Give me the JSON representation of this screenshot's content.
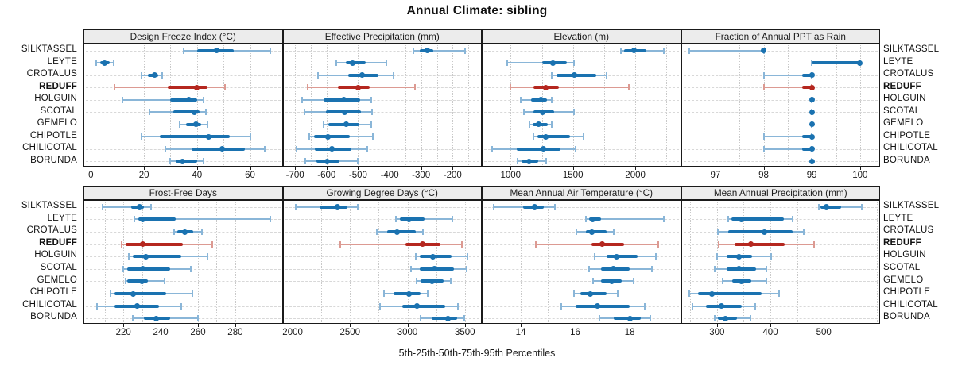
{
  "title": "Annual Climate: sibling",
  "caption": "5th-25th-50th-75th-95th Percentiles",
  "percentile_labels": [
    "5th",
    "25th",
    "50th",
    "75th",
    "95th"
  ],
  "sites": [
    {
      "name": "SILKTASSEL",
      "highlight": false
    },
    {
      "name": "LEYTE",
      "highlight": false
    },
    {
      "name": "CROTALUS",
      "highlight": false
    },
    {
      "name": "REDUFF",
      "highlight": true
    },
    {
      "name": "HOLGUIN",
      "highlight": false
    },
    {
      "name": "SCOTAL",
      "highlight": false
    },
    {
      "name": "GEMELO",
      "highlight": false
    },
    {
      "name": "CHIPOTLE",
      "highlight": false
    },
    {
      "name": "CHILICOTAL",
      "highlight": false
    },
    {
      "name": "BORUNDA",
      "highlight": false
    }
  ],
  "colors": {
    "blue": "#1a72b0",
    "blue_light": "#8ab6d8",
    "red": "#b5271f",
    "red_light": "#dc9a92",
    "strip_bg": "#ececec",
    "grid": "#c9c9c9"
  },
  "chart_data": [
    {
      "type": "dot-whisker",
      "title": "Design Freeze Index (°C)",
      "row": 0,
      "col": 0,
      "xlim": [
        -2.5,
        72
      ],
      "ticks": [
        0,
        20,
        40,
        60
      ],
      "grid_step": 10,
      "values_order": "sites",
      "values": [
        [
          35,
          40,
          47.5,
          54,
          67.5
        ],
        [
          2,
          3.5,
          5,
          7,
          8.5
        ],
        [
          19,
          21.5,
          24,
          25.5,
          27
        ],
        [
          9,
          29,
          40,
          44,
          50.5
        ],
        [
          12,
          30,
          37,
          40,
          42.5
        ],
        [
          22,
          31,
          39,
          41,
          43.5
        ],
        [
          33.5,
          36,
          39.5,
          41.5,
          44
        ],
        [
          19,
          26,
          44.5,
          52.5,
          60
        ],
        [
          28,
          38,
          49.5,
          58,
          65.5
        ],
        [
          30,
          32,
          34.5,
          40,
          42.5
        ]
      ]
    },
    {
      "type": "dot-whisker",
      "title": "Effective Precipitation (mm)",
      "row": 0,
      "col": 1,
      "xlim": [
        -737,
        -110
      ],
      "ticks": [
        -700,
        -600,
        -500,
        -400,
        -300,
        -200
      ],
      "grid_step": 50,
      "values_order": "sites",
      "values": [
        [
          -325,
          -305,
          -280,
          -260,
          -160
        ],
        [
          -570,
          -540,
          -518,
          -477,
          -411
        ],
        [
          -628,
          -532,
          -488,
          -436,
          -388
        ],
        [
          -659,
          -565,
          -499,
          -462,
          -319
        ],
        [
          -679,
          -610,
          -546,
          -493,
          -458
        ],
        [
          -671,
          -602,
          -544,
          -491,
          -456
        ],
        [
          -610,
          -595,
          -538,
          -495,
          -458
        ],
        [
          -655,
          -641,
          -597,
          -526,
          -454
        ],
        [
          -696,
          -638,
          -584,
          -521,
          -472
        ],
        [
          -668,
          -633,
          -599,
          -559,
          -501
        ]
      ]
    },
    {
      "type": "dot-whisker",
      "title": "Elevation (m)",
      "row": 0,
      "col": 2,
      "xlim": [
        775,
        2360
      ],
      "ticks": [
        1000,
        1500,
        2000
      ],
      "grid_step": 250,
      "values_order": "sites",
      "values": [
        [
          1885,
          1910,
          1990,
          2090,
          2230
        ],
        [
          970,
          1255,
          1340,
          1450,
          1505
        ],
        [
          1330,
          1370,
          1512,
          1685,
          1770
        ],
        [
          1000,
          1180,
          1284,
          1390,
          1950
        ],
        [
          1078,
          1163,
          1241,
          1290,
          1332
        ],
        [
          1106,
          1184,
          1258,
          1347,
          1508
        ],
        [
          1148,
          1178,
          1227,
          1296,
          1332
        ],
        [
          1180,
          1212,
          1284,
          1474,
          1586
        ],
        [
          850,
          1050,
          1265,
          1400,
          1520
        ],
        [
          1057,
          1090,
          1146,
          1220,
          1284
        ]
      ]
    },
    {
      "type": "dot-whisker",
      "title": "Fraction of Annual PPT as Rain",
      "row": 0,
      "col": 3,
      "xlim": [
        96.3,
        100.4
      ],
      "ticks": [
        97,
        98,
        99,
        100
      ],
      "grid_step": 0.5,
      "values_order": "sites",
      "values": [
        [
          96.45,
          98,
          98,
          98,
          98
        ],
        [
          99,
          99,
          100,
          100,
          100
        ],
        [
          98,
          98.8,
          99,
          99,
          99
        ],
        [
          98,
          98.8,
          99,
          99,
          99
        ],
        [
          99,
          99,
          99,
          99,
          99
        ],
        [
          99,
          99,
          99,
          99,
          99
        ],
        [
          99,
          99,
          99,
          99,
          99
        ],
        [
          98,
          98.8,
          99,
          99,
          99
        ],
        [
          98,
          98.8,
          99,
          99,
          99
        ],
        [
          99,
          99,
          99,
          99,
          99
        ]
      ]
    },
    {
      "type": "dot-whisker",
      "title": "Frost-Free Days",
      "row": 1,
      "col": 0,
      "xlim": [
        199,
        305
      ],
      "ticks": [
        220,
        240,
        260,
        280
      ],
      "grid_step": 10,
      "values_order": "sites",
      "values": [
        [
          209,
          224,
          228.5,
          231,
          235
        ],
        [
          226,
          228,
          230.5,
          248,
          299
        ],
        [
          247,
          249,
          253,
          257.5,
          262
        ],
        [
          219,
          221,
          230.5,
          252,
          267.5
        ],
        [
          223,
          225,
          232,
          251,
          265
        ],
        [
          220,
          222,
          230.5,
          245,
          256
        ],
        [
          221,
          222,
          230,
          233,
          242
        ],
        [
          213,
          215,
          225,
          243,
          257
        ],
        [
          206,
          215,
          227.5,
          239,
          251
        ],
        [
          225,
          231,
          237.5,
          245,
          260
        ]
      ]
    },
    {
      "type": "dot-whisker",
      "title": "Growing Degree Days (°C)",
      "row": 1,
      "col": 1,
      "xlim": [
        1920,
        3640
      ],
      "ticks": [
        2000,
        2500,
        3000,
        3500
      ],
      "grid_step": 250,
      "values_order": "sites",
      "values": [
        [
          2025,
          2236,
          2392,
          2477,
          2564
        ],
        [
          2900,
          2935,
          3010,
          3152,
          3393
        ],
        [
          2735,
          2820,
          2912,
          3072,
          3136
        ],
        [
          2415,
          2980,
          3129,
          3290,
          3473
        ],
        [
          3072,
          3107,
          3221,
          3381,
          3519
        ],
        [
          3031,
          3107,
          3232,
          3404,
          3512
        ],
        [
          3079,
          3111,
          3217,
          3317,
          3374
        ],
        [
          2797,
          2877,
          3010,
          3111,
          3175
        ],
        [
          2763,
          2957,
          3083,
          3331,
          3439
        ],
        [
          3113,
          3210,
          3352,
          3432,
          3491
        ]
      ]
    },
    {
      "type": "dot-whisker",
      "title": "Mean Annual Air Temperature (°C)",
      "row": 1,
      "col": 2,
      "xlim": [
        12.6,
        19.85
      ],
      "ticks": [
        14,
        16,
        18
      ],
      "grid_step": 1,
      "values_order": "sites",
      "values": [
        [
          13.0,
          14.1,
          14.5,
          14.85,
          15.25
        ],
        [
          16.4,
          16.5,
          16.65,
          16.95,
          19.25
        ],
        [
          16.05,
          16.4,
          16.6,
          17.15,
          17.4
        ],
        [
          14.55,
          16.6,
          17.0,
          17.8,
          19.05
        ],
        [
          16.7,
          17.15,
          17.5,
          18.3,
          18.95
        ],
        [
          16.5,
          16.95,
          17.4,
          18.0,
          18.8
        ],
        [
          16.65,
          16.95,
          17.35,
          17.7,
          18.15
        ],
        [
          15.95,
          16.2,
          16.55,
          17.15,
          17.55
        ],
        [
          15.5,
          16.0,
          16.8,
          18.0,
          18.55
        ],
        [
          16.9,
          17.4,
          18.0,
          18.4,
          18.75
        ]
      ]
    },
    {
      "type": "dot-whisker",
      "title": "Mean Annual Precipitation (mm)",
      "row": 1,
      "col": 3,
      "xlim": [
        234,
        604
      ],
      "ticks": [
        300,
        400,
        500
      ],
      "grid_step": 50,
      "values_order": "sites",
      "values": [
        [
          491,
          494,
          505,
          532,
          571
        ],
        [
          321,
          327,
          346,
          425,
          441
        ],
        [
          301,
          321,
          389,
          442,
          463
        ],
        [
          303,
          333,
          364,
          427,
          482
        ],
        [
          300,
          318,
          341,
          366,
          402
        ],
        [
          296,
          318,
          341,
          373,
          392
        ],
        [
          311,
          328,
          345,
          364,
          393
        ],
        [
          248,
          264,
          290,
          384,
          416
        ],
        [
          254,
          280,
          308,
          347,
          372
        ],
        [
          296,
          302,
          316,
          337,
          363
        ]
      ]
    }
  ]
}
